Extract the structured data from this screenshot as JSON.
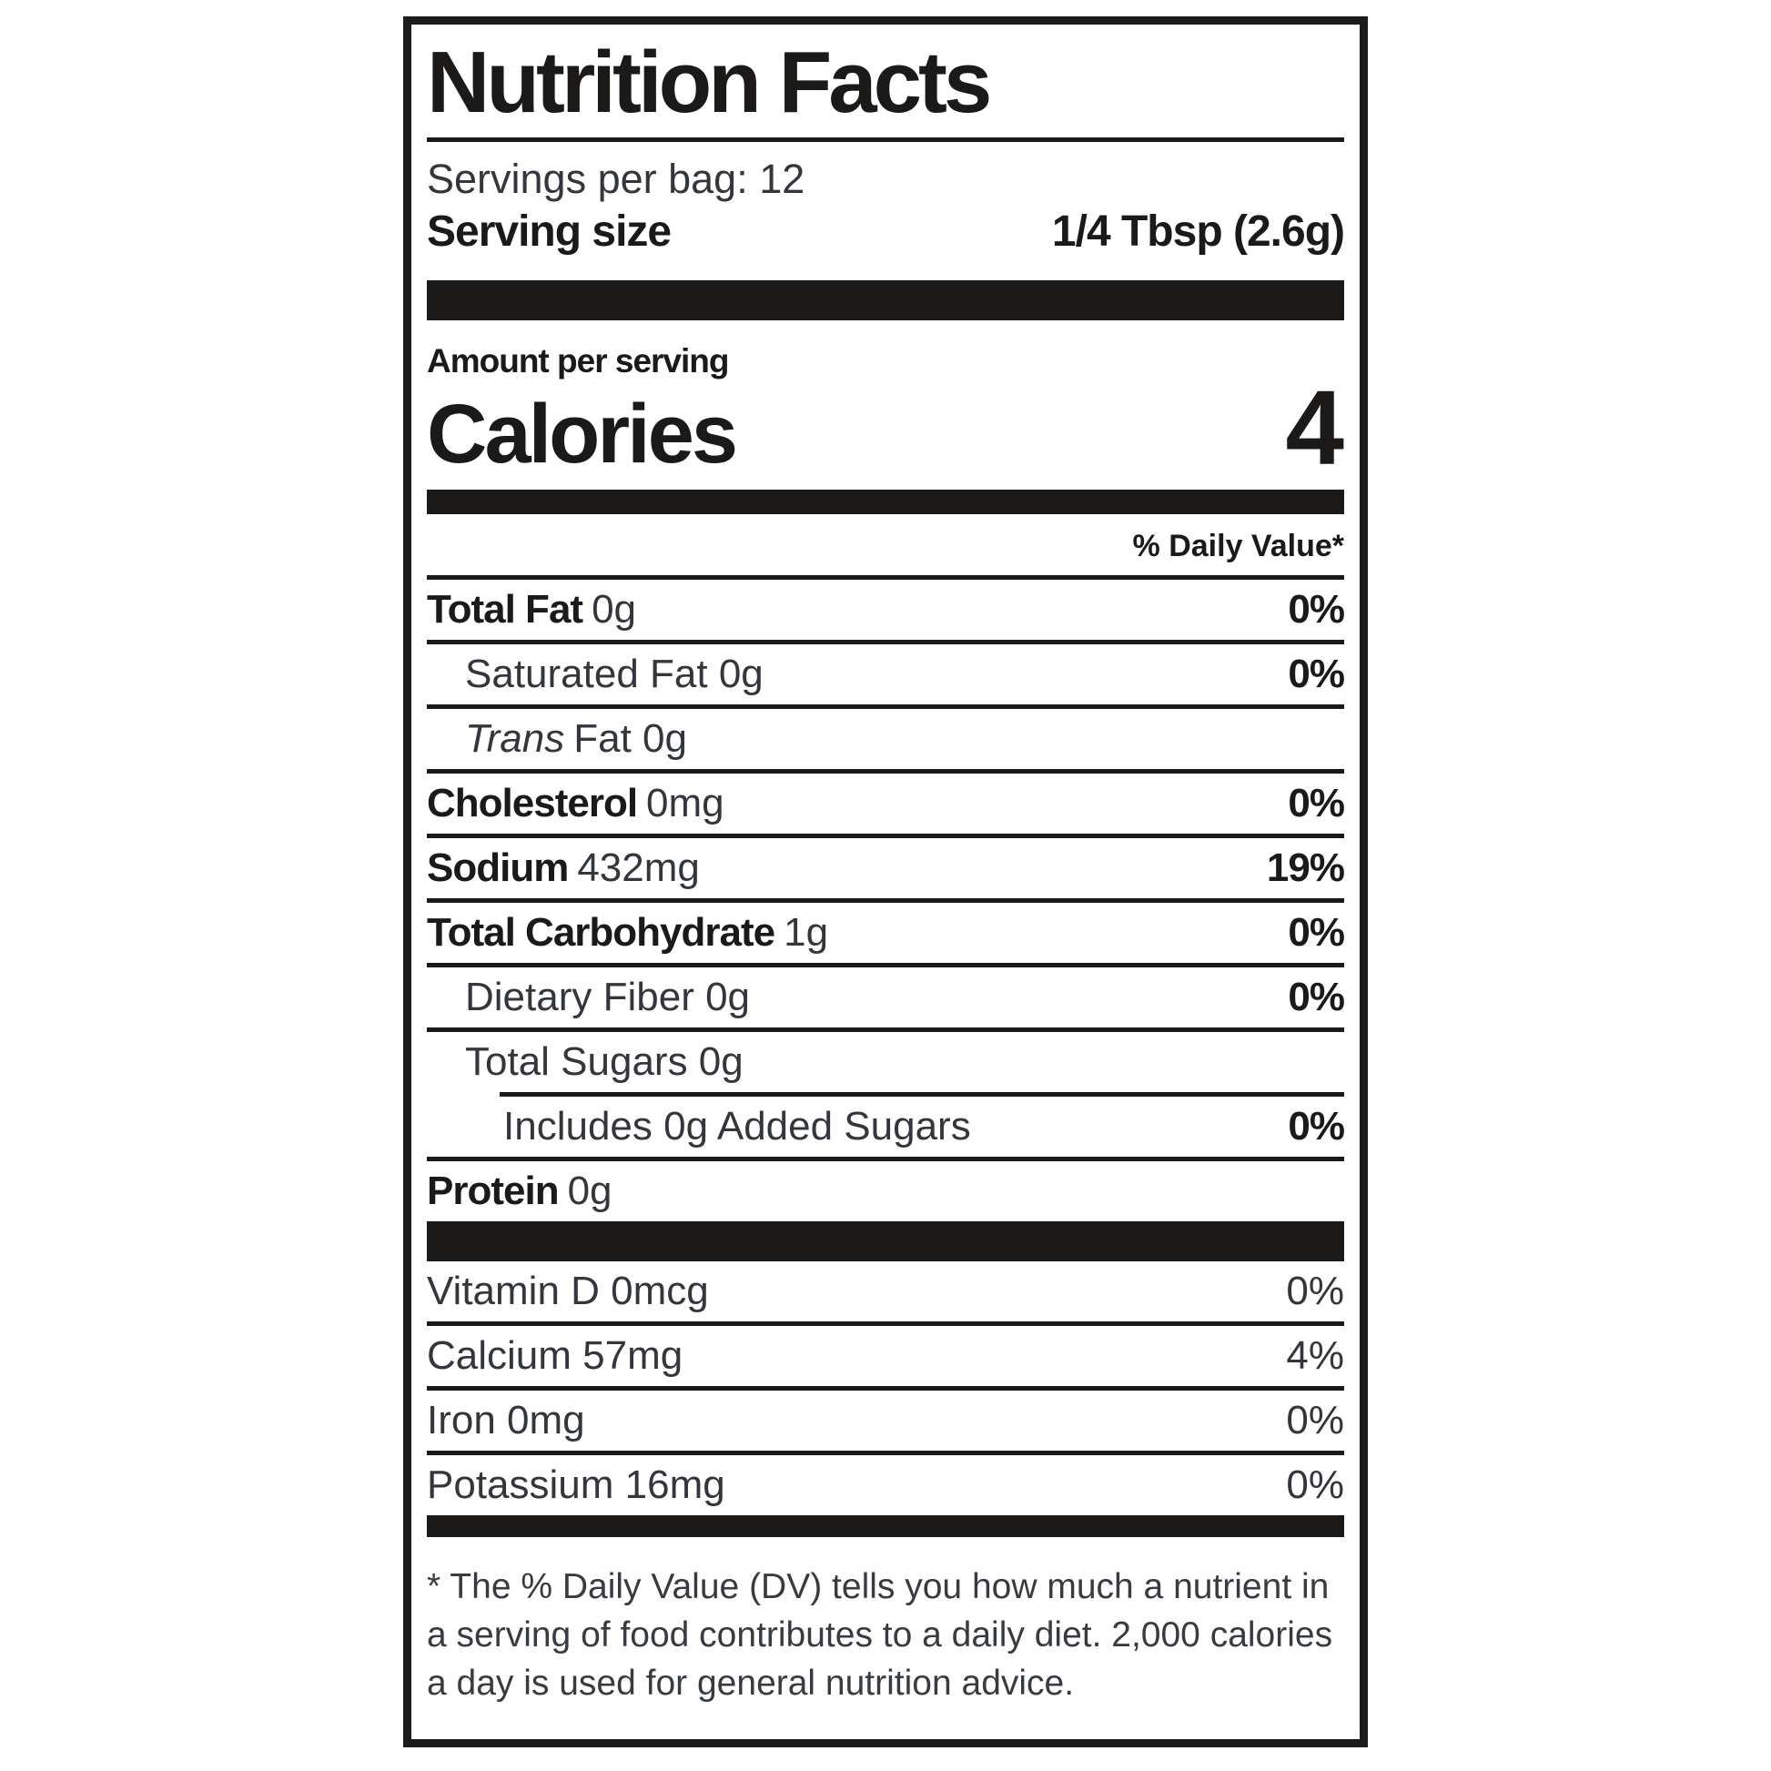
{
  "label": {
    "title": "Nutrition Facts",
    "servings_per_bag": "Servings per bag: 12",
    "serving_size_label": "Serving size",
    "serving_size_value": "1/4 Tbsp (2.6g)",
    "amount_per_serving": "Amount per serving",
    "calories_label": "Calories",
    "calories_value": "4",
    "daily_value_header": "% Daily Value*",
    "nutrients": [
      {
        "bold": "Total Fat",
        "amount": "0g",
        "dv": "0%"
      },
      {
        "regular": "Saturated Fat 0g",
        "dv": "0%"
      },
      {
        "italic": "Trans",
        "regular": "Fat 0g",
        "dv": ""
      },
      {
        "bold": "Cholesterol",
        "amount": "0mg",
        "dv": "0%"
      },
      {
        "bold": "Sodium",
        "amount": "432mg",
        "dv": "19%"
      },
      {
        "bold": "Total Carbohydrate",
        "amount": "1g",
        "dv": "0%"
      },
      {
        "regular": "Dietary Fiber 0g",
        "dv": "0%"
      },
      {
        "regular": "Total Sugars 0g",
        "dv": ""
      },
      {
        "regular": "Includes 0g Added Sugars",
        "dv": "0%"
      },
      {
        "bold": "Protein",
        "amount": "0g",
        "dv": ""
      }
    ],
    "vitamins": [
      {
        "name": "Vitamin D 0mcg",
        "dv": "0%"
      },
      {
        "name": "Calcium 57mg",
        "dv": "4%"
      },
      {
        "name": "Iron 0mg",
        "dv": "0%"
      },
      {
        "name": "Potassium 16mg",
        "dv": "0%"
      }
    ],
    "footnote": "* The % Daily Value (DV) tells you how much a nutrient in a serving of food contributes to a daily diet. 2,000 calories a day is used for general nutrition advice.",
    "colors": {
      "ink_heavy": "#1b1a18",
      "ink_regular": "#33363c",
      "background": "#ffffff"
    }
  }
}
